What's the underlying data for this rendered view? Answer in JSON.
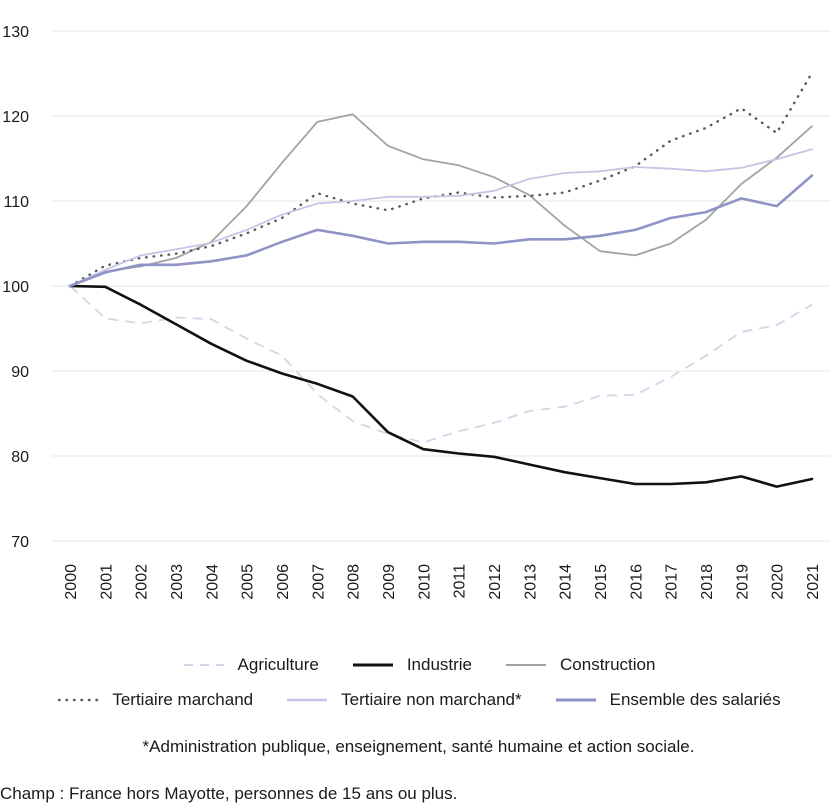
{
  "chart_data": {
    "type": "line",
    "title": "",
    "xlabel": "",
    "ylabel": "",
    "ylim": [
      70,
      130
    ],
    "yticks": [
      70,
      80,
      90,
      100,
      110,
      120,
      130
    ],
    "grid": true,
    "legend_position": "bottom",
    "x": [
      "2000",
      "2001",
      "2002",
      "2003",
      "2004",
      "2005",
      "2006",
      "2007",
      "2008",
      "2009",
      "2010",
      "2011",
      "2012",
      "2013",
      "2014",
      "2015",
      "2016",
      "2017",
      "2018",
      "2019",
      "2020",
      "2021"
    ],
    "series": [
      {
        "name": "Agriculture",
        "color": "#d3d5e8",
        "style": "dashed",
        "values": [
          100,
          96.2,
          95.6,
          96.3,
          96.1,
          93.8,
          91.8,
          87.3,
          84.1,
          82.6,
          81.6,
          82.9,
          83.9,
          85.3,
          85.8,
          87.1,
          87.2,
          89.3,
          91.8,
          94.6,
          95.4,
          97.8
        ]
      },
      {
        "name": "Industrie",
        "color": "#111111",
        "style": "solid-thick",
        "values": [
          100,
          99.9,
          97.8,
          95.5,
          93.2,
          91.2,
          89.7,
          88.5,
          87.0,
          82.8,
          80.8,
          80.3,
          79.9,
          79.0,
          78.1,
          77.4,
          76.7,
          76.7,
          76.9,
          77.6,
          76.4,
          77.3
        ]
      },
      {
        "name": "Construction",
        "color": "#a3a3a3",
        "style": "solid",
        "values": [
          100,
          101.7,
          102.3,
          103.3,
          105.2,
          109.4,
          114.5,
          119.3,
          120.2,
          116.5,
          114.9,
          114.2,
          112.8,
          110.7,
          107.1,
          104.1,
          103.6,
          105.0,
          107.8,
          112.0,
          115.1,
          118.8
        ]
      },
      {
        "name": "Tertiaire marchand",
        "color": "#5a5a5a",
        "style": "dotted",
        "values": [
          100,
          102.4,
          103.3,
          103.8,
          104.7,
          106.2,
          108.0,
          110.9,
          109.7,
          108.9,
          110.3,
          111.0,
          110.4,
          110.6,
          111.0,
          112.4,
          114.1,
          117.1,
          118.6,
          120.9,
          118.0,
          125.1
        ]
      },
      {
        "name": "Tertiaire non marchand*",
        "color": "#c4c6e6",
        "style": "solid",
        "values": [
          100,
          101.9,
          103.6,
          104.3,
          105.1,
          106.6,
          108.4,
          109.7,
          110.0,
          110.5,
          110.5,
          110.6,
          111.2,
          112.6,
          113.3,
          113.5,
          114.0,
          113.8,
          113.5,
          113.9,
          114.9,
          116.1
        ]
      },
      {
        "name": "Ensemble des salariés",
        "color": "#8f93c7",
        "style": "solid-thick",
        "values": [
          100,
          101.6,
          102.5,
          102.5,
          102.9,
          103.6,
          105.2,
          106.6,
          105.9,
          105.0,
          105.2,
          105.2,
          105.0,
          105.5,
          105.5,
          105.9,
          106.6,
          108.0,
          108.7,
          110.3,
          109.4,
          113.0
        ]
      }
    ]
  },
  "footnote": "*Administration publique, enseignement, santé humaine et action sociale.",
  "source": "Champ : France hors Mayotte, personnes de 15 ans ou plus."
}
